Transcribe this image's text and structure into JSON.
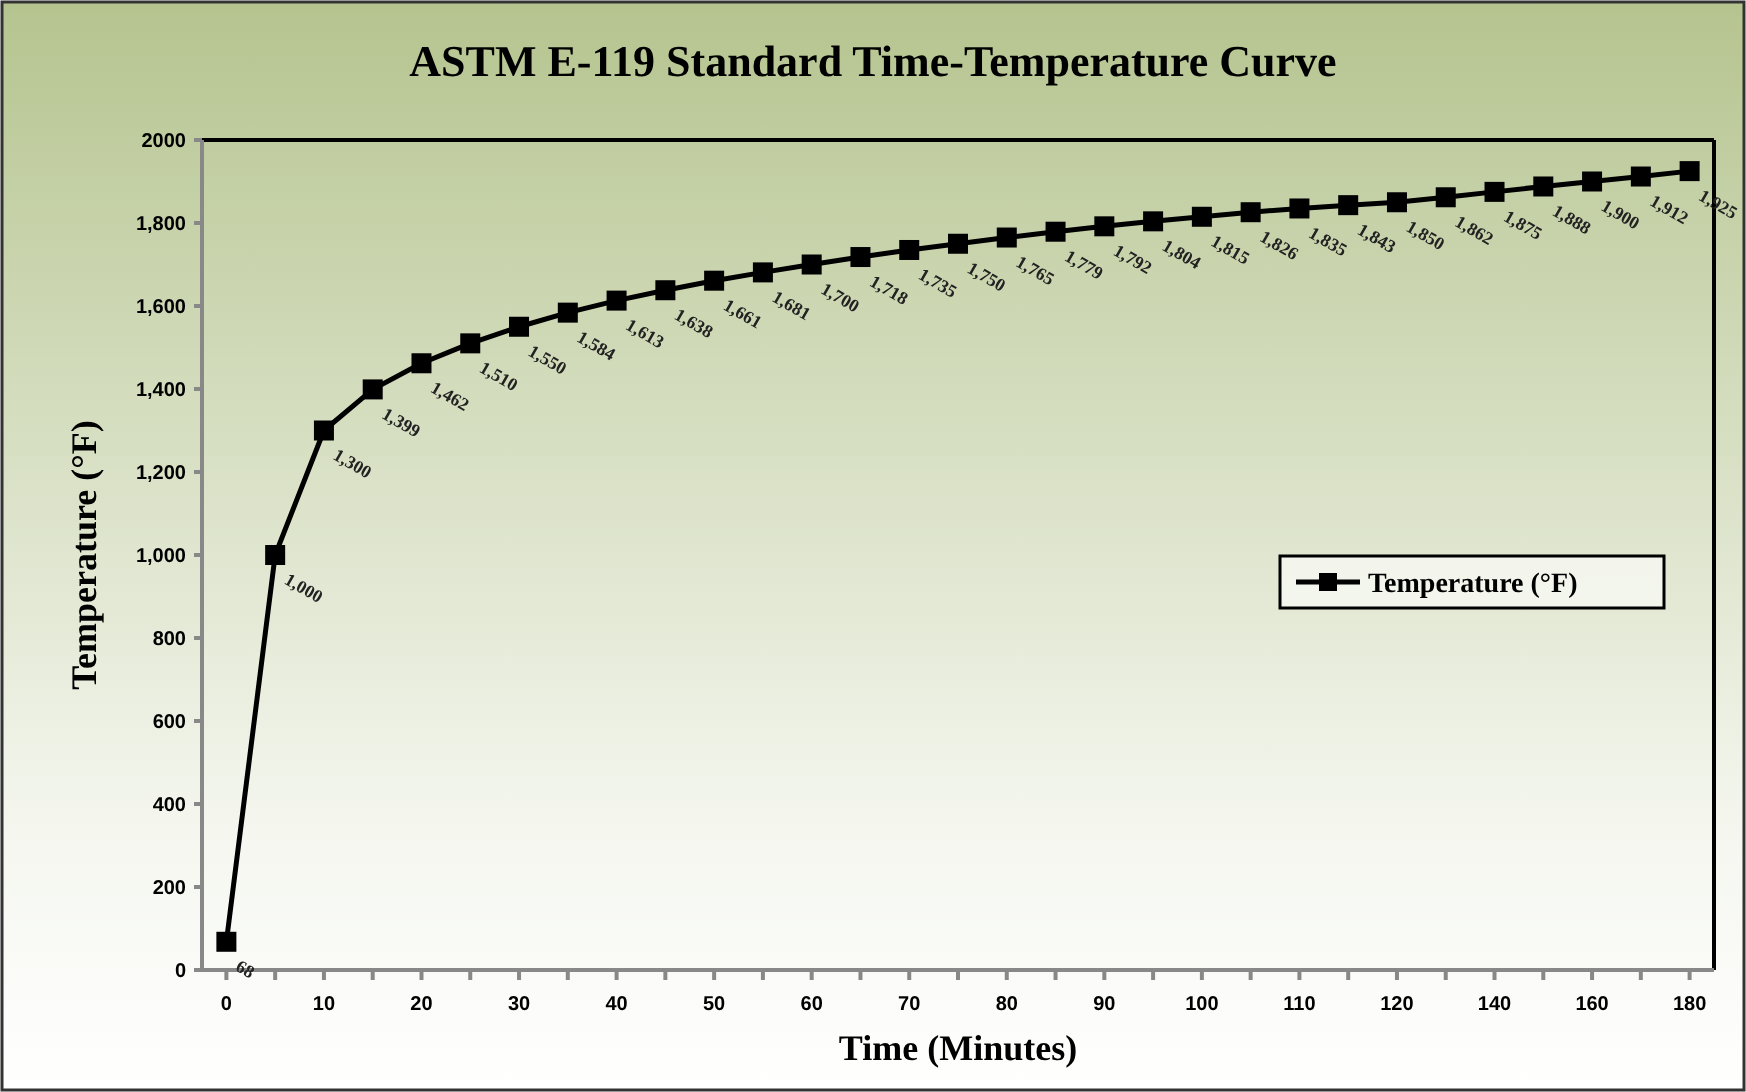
{
  "chart_data": {
    "type": "line",
    "title": "ASTM E-119 Standard Time-Temperature Curve",
    "xlabel": "Time (Minutes)",
    "ylabel": "Temperature (°F)",
    "categories": [
      "0",
      null,
      "10",
      null,
      "20",
      null,
      "30",
      null,
      "40",
      null,
      "50",
      null,
      "60",
      null,
      "70",
      null,
      "80",
      null,
      "90",
      null,
      "100",
      null,
      "110",
      null,
      "120",
      null,
      "140",
      null,
      "160",
      null,
      "180"
    ],
    "series": [
      {
        "name": "Temperature (°F)",
        "color": "#000000",
        "values": [
          68,
          1000,
          1300,
          1399,
          1462,
          1510,
          1550,
          1584,
          1613,
          1638,
          1661,
          1681,
          1700,
          1718,
          1735,
          1750,
          1765,
          1779,
          1792,
          1804,
          1815,
          1826,
          1835,
          1843,
          1850,
          1862,
          1875,
          1888,
          1900,
          1912,
          1925
        ],
        "value_labels": [
          "68",
          "1,000",
          "1,300",
          "1,399",
          "1,462",
          "1,510",
          "1,550",
          "1,584",
          "1,613",
          "1,638",
          "1,661",
          "1,681",
          "1,700",
          "1,718",
          "1,735",
          "1,750",
          "1,765",
          "1,779",
          "1,792",
          "1,804",
          "1,815",
          "1,826",
          "1,835",
          "1,843",
          "1,850",
          "1,862",
          "1,875",
          "1,888",
          "1,900",
          "1,912",
          "1,925"
        ]
      }
    ],
    "ylim": [
      0,
      2000
    ],
    "yticks": [
      0,
      200,
      400,
      600,
      800,
      {
        "value": 1000,
        "label": "1,000"
      },
      {
        "value": 1200,
        "label": "1,200"
      },
      {
        "value": 1400,
        "label": "1,400"
      },
      {
        "value": 1600,
        "label": "1,600"
      },
      {
        "value": 1800,
        "label": "1,800"
      },
      2000
    ],
    "grid": false,
    "legend": "right",
    "marker": "square",
    "line_style": "solid"
  }
}
